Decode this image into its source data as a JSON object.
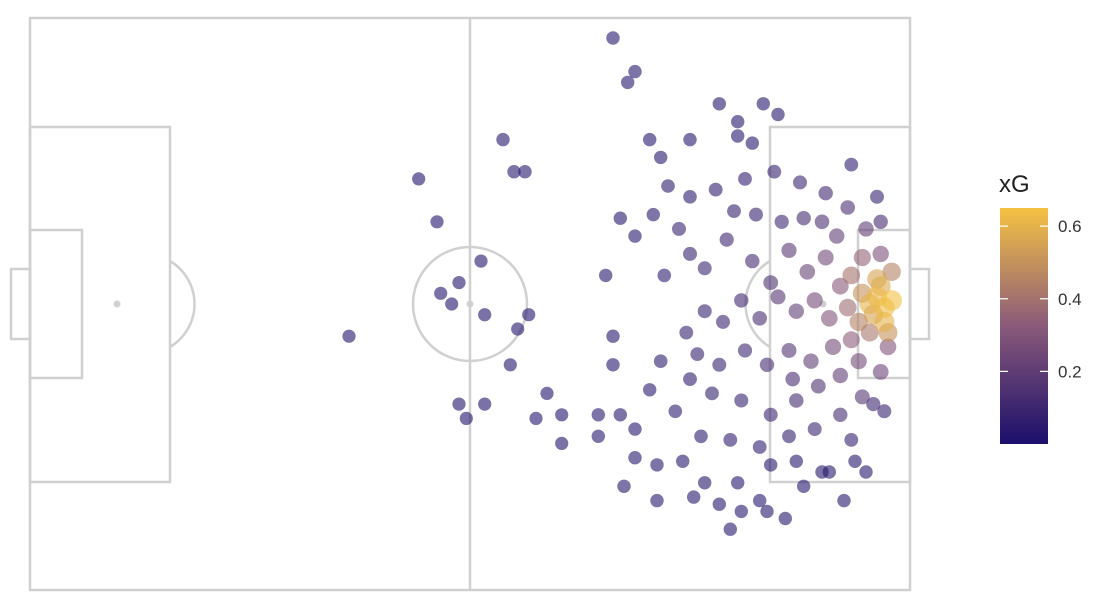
{
  "chart_data": {
    "type": "scatter",
    "title": "",
    "xlabel": "",
    "ylabel": "",
    "xlim": [
      0,
      120
    ],
    "ylim": [
      0,
      80
    ],
    "grid": false,
    "background": "football-pitch",
    "attacking_direction": "right",
    "color_scale": {
      "variable": "xG",
      "title": "xG",
      "range": [
        0.0,
        0.65
      ],
      "ticks": [
        0.2,
        0.4,
        0.6
      ],
      "tick_labels": [
        "0.2",
        "0.4",
        "0.6"
      ],
      "low_color": "#1b0f6b",
      "high_color": "#f5c242",
      "legend_position": "right"
    },
    "series": [
      {
        "points": [
          [
            79.5,
            77.2,
            0.03
          ],
          [
            82.5,
            72.5,
            0.03
          ],
          [
            81.5,
            71.0,
            0.03
          ],
          [
            94.0,
            68.0,
            0.03
          ],
          [
            100.0,
            68.0,
            0.03
          ],
          [
            102.0,
            66.5,
            0.03
          ],
          [
            96.5,
            65.5,
            0.03
          ],
          [
            84.5,
            63.0,
            0.03
          ],
          [
            90.0,
            63.0,
            0.03
          ],
          [
            96.5,
            63.5,
            0.03
          ],
          [
            98.5,
            62.5,
            0.03
          ],
          [
            86.0,
            60.5,
            0.03
          ],
          [
            64.5,
            63.0,
            0.03
          ],
          [
            53.0,
            57.5,
            0.02
          ],
          [
            66.0,
            58.5,
            0.03
          ],
          [
            67.5,
            58.5,
            0.03
          ],
          [
            55.5,
            51.5,
            0.02
          ],
          [
            80.5,
            52.0,
            0.03
          ],
          [
            82.5,
            49.5,
            0.03
          ],
          [
            78.5,
            44.0,
            0.03
          ],
          [
            61.5,
            46.0,
            0.02
          ],
          [
            56.0,
            41.5,
            0.02
          ],
          [
            58.5,
            43.0,
            0.02
          ],
          [
            57.5,
            40.0,
            0.02
          ],
          [
            62.0,
            38.5,
            0.02
          ],
          [
            68.0,
            38.5,
            0.02
          ],
          [
            66.5,
            36.5,
            0.02
          ],
          [
            43.5,
            35.5,
            0.02
          ],
          [
            65.5,
            31.5,
            0.02
          ],
          [
            79.5,
            35.5,
            0.03
          ],
          [
            79.5,
            31.5,
            0.03
          ],
          [
            58.5,
            26.0,
            0.02
          ],
          [
            62.0,
            26.0,
            0.02
          ],
          [
            59.5,
            24.0,
            0.02
          ],
          [
            70.5,
            27.5,
            0.02
          ],
          [
            69.0,
            24.0,
            0.02
          ],
          [
            72.5,
            24.5,
            0.02
          ],
          [
            72.5,
            20.5,
            0.02
          ],
          [
            77.5,
            24.5,
            0.03
          ],
          [
            77.5,
            21.5,
            0.03
          ],
          [
            80.5,
            24.5,
            0.03
          ],
          [
            82.5,
            22.5,
            0.03
          ],
          [
            82.5,
            18.5,
            0.03
          ],
          [
            85.5,
            17.5,
            0.03
          ],
          [
            89.0,
            18.0,
            0.03
          ],
          [
            92.0,
            15.0,
            0.03
          ],
          [
            96.5,
            15.0,
            0.03
          ],
          [
            101.0,
            17.5,
            0.03
          ],
          [
            104.5,
            18.0,
            0.03
          ],
          [
            108.0,
            16.5,
            0.03
          ],
          [
            81.0,
            14.5,
            0.03
          ],
          [
            85.5,
            12.5,
            0.03
          ],
          [
            90.5,
            13.0,
            0.03
          ],
          [
            94.0,
            12.0,
            0.03
          ],
          [
            99.5,
            12.5,
            0.03
          ],
          [
            100.5,
            11.0,
            0.03
          ],
          [
            105.5,
            14.5,
            0.03
          ],
          [
            111.0,
            12.5,
            0.03
          ],
          [
            103.0,
            10.0,
            0.03
          ],
          [
            95.5,
            8.5,
            0.03
          ],
          [
            109.0,
            16.5,
            0.03
          ],
          [
            112.5,
            18.0,
            0.03
          ],
          [
            114.0,
            16.5,
            0.03
          ],
          [
            97.0,
            11.0,
            0.03
          ],
          [
            88.5,
            50.5,
            0.08
          ],
          [
            90.0,
            47.0,
            0.08
          ],
          [
            92.0,
            45.0,
            0.09
          ],
          [
            95.0,
            49.0,
            0.1
          ],
          [
            98.5,
            46.0,
            0.12
          ],
          [
            101.0,
            43.0,
            0.15
          ],
          [
            103.5,
            47.5,
            0.18
          ],
          [
            106.0,
            44.5,
            0.22
          ],
          [
            108.5,
            46.5,
            0.25
          ],
          [
            110.5,
            42.5,
            0.32
          ],
          [
            112.0,
            44.0,
            0.4
          ],
          [
            113.5,
            41.5,
            0.5
          ],
          [
            114.5,
            40.0,
            0.6
          ],
          [
            115.5,
            41.0,
            0.62
          ],
          [
            116.0,
            42.5,
            0.58
          ],
          [
            115.0,
            38.5,
            0.55
          ],
          [
            113.0,
            37.5,
            0.45
          ],
          [
            111.5,
            39.5,
            0.38
          ],
          [
            109.0,
            38.0,
            0.3
          ],
          [
            107.0,
            40.5,
            0.26
          ],
          [
            104.5,
            39.0,
            0.2
          ],
          [
            102.0,
            41.0,
            0.17
          ],
          [
            99.5,
            38.0,
            0.13
          ],
          [
            97.0,
            40.5,
            0.11
          ],
          [
            94.5,
            37.5,
            0.09
          ],
          [
            92.0,
            39.0,
            0.08
          ],
          [
            89.5,
            36.0,
            0.07
          ],
          [
            91.0,
            33.0,
            0.07
          ],
          [
            94.0,
            31.5,
            0.08
          ],
          [
            97.5,
            33.5,
            0.1
          ],
          [
            100.5,
            31.5,
            0.12
          ],
          [
            103.5,
            33.5,
            0.16
          ],
          [
            106.5,
            32.0,
            0.2
          ],
          [
            109.5,
            34.0,
            0.26
          ],
          [
            112.0,
            35.0,
            0.33
          ],
          [
            114.5,
            36.0,
            0.42
          ],
          [
            116.5,
            39.5,
            0.63
          ],
          [
            116.5,
            37.5,
            0.6
          ],
          [
            117.5,
            40.5,
            0.64
          ],
          [
            113.0,
            32.0,
            0.26
          ],
          [
            110.5,
            30.0,
            0.2
          ],
          [
            107.5,
            28.5,
            0.15
          ],
          [
            104.5,
            26.5,
            0.12
          ],
          [
            101.0,
            24.5,
            0.09
          ],
          [
            97.0,
            26.5,
            0.08
          ],
          [
            93.0,
            27.5,
            0.07
          ],
          [
            90.0,
            29.5,
            0.06
          ],
          [
            88.0,
            25.0,
            0.05
          ],
          [
            91.5,
            21.5,
            0.05
          ],
          [
            95.5,
            21.0,
            0.06
          ],
          [
            99.5,
            20.0,
            0.06
          ],
          [
            103.5,
            21.5,
            0.07
          ],
          [
            107.0,
            22.5,
            0.09
          ],
          [
            110.5,
            24.5,
            0.12
          ],
          [
            113.5,
            27.0,
            0.17
          ],
          [
            116.0,
            30.5,
            0.23
          ],
          [
            117.0,
            34.0,
            0.3
          ],
          [
            116.0,
            47.0,
            0.28
          ],
          [
            114.0,
            50.5,
            0.2
          ],
          [
            111.5,
            53.5,
            0.14
          ],
          [
            108.5,
            55.5,
            0.11
          ],
          [
            105.0,
            57.0,
            0.09
          ],
          [
            101.5,
            58.5,
            0.07
          ],
          [
            97.5,
            57.5,
            0.06
          ],
          [
            93.5,
            56.0,
            0.06
          ],
          [
            90.0,
            55.0,
            0.05
          ],
          [
            87.0,
            56.5,
            0.05
          ],
          [
            85.0,
            52.5,
            0.04
          ],
          [
            86.5,
            44.0,
            0.05
          ],
          [
            86.0,
            32.0,
            0.05
          ],
          [
            84.5,
            28.0,
            0.04
          ],
          [
            115.0,
            26.0,
            0.1
          ],
          [
            112.0,
            21.0,
            0.07
          ],
          [
            115.5,
            55.0,
            0.08
          ],
          [
            112.0,
            59.5,
            0.06
          ],
          [
            117.5,
            44.5,
            0.45
          ],
          [
            117.0,
            36.0,
            0.5
          ],
          [
            110.0,
            49.5,
            0.2
          ],
          [
            108.0,
            51.5,
            0.14
          ],
          [
            105.5,
            52.0,
            0.12
          ],
          [
            102.5,
            51.5,
            0.1
          ],
          [
            99.0,
            52.5,
            0.08
          ],
          [
            96.0,
            53.0,
            0.07
          ],
          [
            104.0,
            29.5,
            0.13
          ],
          [
            116.5,
            25.0,
            0.08
          ],
          [
            116.0,
            51.5,
            0.12
          ],
          [
            113.5,
            46.5,
            0.35
          ],
          [
            115.5,
            43.5,
            0.55
          ]
        ]
      }
    ]
  }
}
